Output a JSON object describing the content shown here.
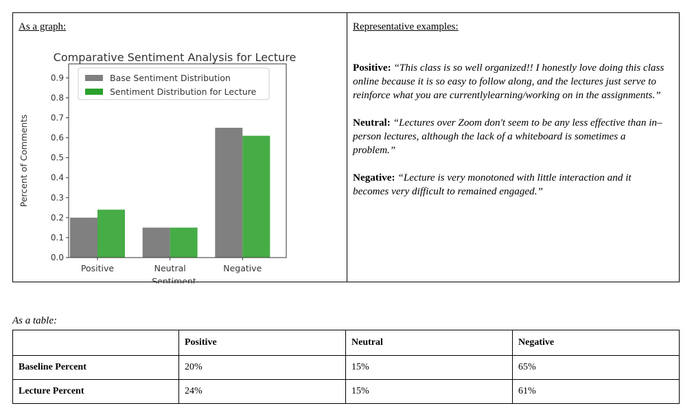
{
  "graph_heading": "As a graph:",
  "examples_heading": "Representative examples:",
  "examples": [
    {
      "label": "Positive:",
      "quote": "“This class is so well organized!! I honestly love doing this class online because it is so easy to follow along, and the lectures just serve to reinforce what you are currentlylearning/working on in the assignments.”"
    },
    {
      "label": "Neutral:",
      "quote": "“Lectures over Zoom don't seem to be any less effective than in–person lectures, although the lack of a whiteboard is sometimes a problem.”"
    },
    {
      "label": "Negative:",
      "quote": "“Lecture is very monotoned with little interaction and it becomes very difficult to remained engaged.”"
    }
  ],
  "table_caption": "As a table:",
  "table": {
    "headers": [
      "",
      "Positive",
      "Neutral",
      "Negative"
    ],
    "rows": [
      [
        "Baseline Percent",
        "20%",
        "15%",
        "65%"
      ],
      [
        "Lecture Percent",
        "24%",
        "15%",
        "61%"
      ]
    ]
  },
  "chart_data": {
    "type": "bar",
    "title": "Comparative Sentiment Analysis for Lecture",
    "xlabel": "Sentiment",
    "ylabel": "Percent of Comments",
    "categories": [
      "Positive",
      "Neutral",
      "Negative"
    ],
    "series": [
      {
        "name": "Base Sentiment Distribution",
        "values": [
          0.2,
          0.15,
          0.65
        ],
        "color": "#808080"
      },
      {
        "name": "Sentiment Distribution for Lecture",
        "values": [
          0.24,
          0.15,
          0.61
        ],
        "color": "#2ca02c"
      }
    ],
    "yticks": [
      "0.0",
      "0.1",
      "0.2",
      "0.3",
      "0.4",
      "0.5",
      "0.6",
      "0.7",
      "0.8",
      "0.9"
    ],
    "ylim": [
      0,
      0.97
    ],
    "legend": "top-left",
    "grid": false
  }
}
